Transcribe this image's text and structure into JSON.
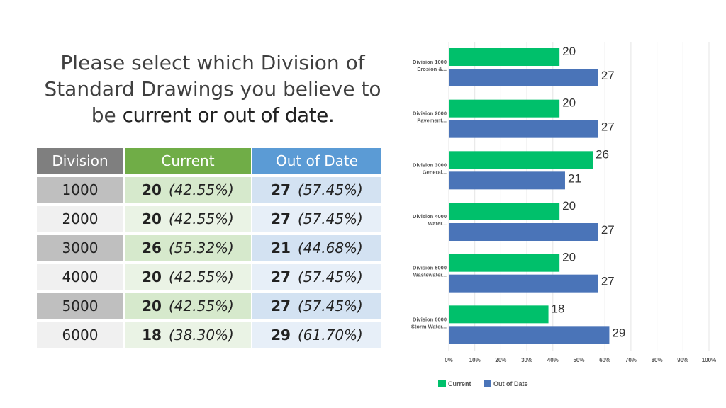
{
  "title": {
    "line1": "Please select which Division of",
    "line2": "Standard Drawings you believe to",
    "line3_plain": "be ",
    "line3_highlight": "current or out of date."
  },
  "table": {
    "headers": [
      "Division",
      "Current",
      "Out of Date"
    ],
    "rows": [
      {
        "division": "1000",
        "current_count": "20",
        "current_pct": "(42.55%)",
        "ood_count": "27",
        "ood_pct": "(57.45%)"
      },
      {
        "division": "2000",
        "current_count": "20",
        "current_pct": "(42.55%)",
        "ood_count": "27",
        "ood_pct": "(57.45%)"
      },
      {
        "division": "3000",
        "current_count": "26",
        "current_pct": "(55.32%)",
        "ood_count": "21",
        "ood_pct": "(44.68%)"
      },
      {
        "division": "4000",
        "current_count": "20",
        "current_pct": "(42.55%)",
        "ood_count": "27",
        "ood_pct": "(57.45%)"
      },
      {
        "division": "5000",
        "current_count": "20",
        "current_pct": "(42.55%)",
        "ood_count": "27",
        "ood_pct": "(57.45%)"
      },
      {
        "division": "6000",
        "current_count": "18",
        "current_pct": "(38.30%)",
        "ood_count": "29",
        "ood_pct": "(61.70%)"
      }
    ]
  },
  "chart_data": {
    "type": "bar",
    "orientation": "horizontal",
    "categories": [
      [
        "Division 1000",
        "Erosion &..."
      ],
      [
        "Division 2000",
        "Pavement..."
      ],
      [
        "Division 3000",
        "General..."
      ],
      [
        "Division 4000",
        "Water..."
      ],
      [
        "Division 5000",
        "Wastewater..."
      ],
      [
        "Division 6000",
        "Storm Water..."
      ]
    ],
    "series": [
      {
        "name": "Current",
        "color": "#00c06b",
        "values": [
          42.55,
          42.55,
          55.32,
          42.55,
          42.55,
          38.3
        ],
        "labels": [
          "20",
          "20",
          "26",
          "20",
          "20",
          "18"
        ]
      },
      {
        "name": "Out of Date",
        "color": "#4a74b8",
        "values": [
          57.45,
          57.45,
          44.68,
          57.45,
          57.45,
          61.7
        ],
        "labels": [
          "27",
          "27",
          "21",
          "27",
          "27",
          "29"
        ]
      }
    ],
    "xlim": [
      0,
      100
    ],
    "xticks": [
      "0%",
      "10%",
      "20%",
      "30%",
      "40%",
      "50%",
      "60%",
      "70%",
      "80%",
      "90%",
      "100%"
    ],
    "grid": true,
    "legend": "bottom"
  }
}
